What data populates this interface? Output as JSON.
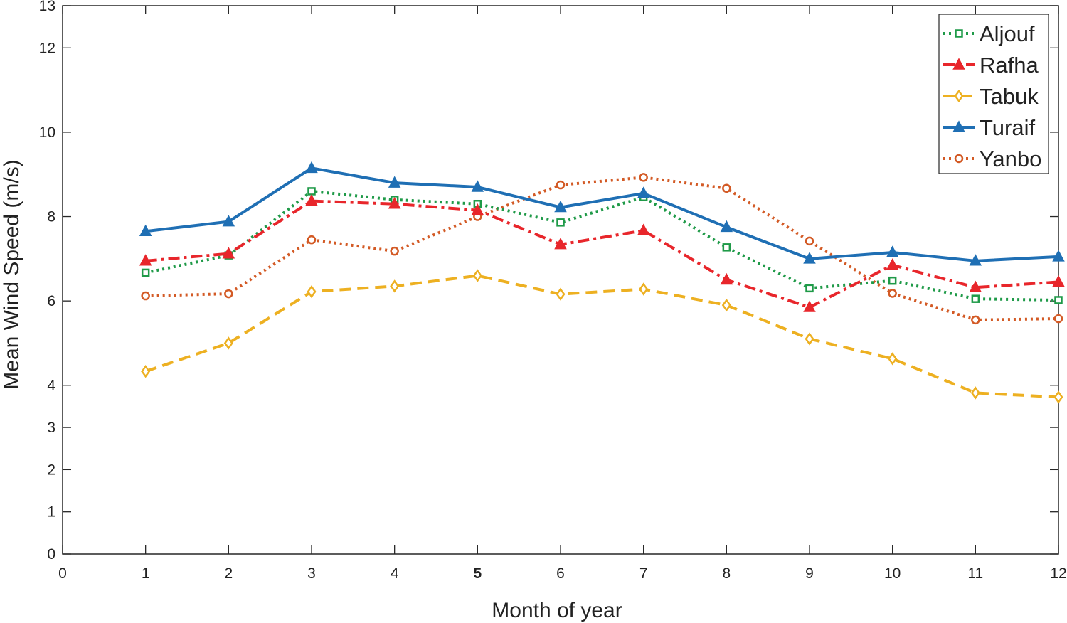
{
  "chart_data": {
    "type": "line",
    "title": "",
    "xlabel": "Month of year",
    "ylabel": "Mean Wind Speed (m/s)",
    "xlim": [
      0,
      12
    ],
    "ylim": [
      0,
      13
    ],
    "x_ticks": [
      {
        "value": 0,
        "label": "0"
      },
      {
        "value": 1,
        "label": "1"
      },
      {
        "value": 2,
        "label": "2"
      },
      {
        "value": 3,
        "label": "3"
      },
      {
        "value": 4,
        "label": "4"
      },
      {
        "value": 5,
        "label": "5",
        "color": "#7aa32a"
      },
      {
        "value": 6,
        "label": "6"
      },
      {
        "value": 7,
        "label": "7"
      },
      {
        "value": 8,
        "label": "8"
      },
      {
        "value": 9,
        "label": "9"
      },
      {
        "value": 10,
        "label": "10"
      },
      {
        "value": 11,
        "label": "11"
      },
      {
        "value": 12,
        "label": "12"
      }
    ],
    "y_ticks": [
      {
        "value": 0,
        "label": "0"
      },
      {
        "value": 1,
        "label": "1"
      },
      {
        "value": 2,
        "label": "2"
      },
      {
        "value": 3,
        "label": "3"
      },
      {
        "value": 4,
        "label": "4"
      },
      {
        "value": 6,
        "label": "6"
      },
      {
        "value": 8,
        "label": "8"
      },
      {
        "value": 10,
        "label": "10"
      },
      {
        "value": 12,
        "label": "12"
      },
      {
        "value": 13,
        "label": "13"
      }
    ],
    "grid": false,
    "legend_position": "top-right",
    "x": [
      1,
      2,
      3,
      4,
      5,
      6,
      7,
      8,
      9,
      10,
      11,
      12
    ],
    "series": [
      {
        "name": "Aljouf",
        "color": "#1f9a48",
        "dash": "dotted",
        "marker": "square",
        "values": [
          6.67,
          7.08,
          8.6,
          8.4,
          8.3,
          7.86,
          8.46,
          7.27,
          6.3,
          6.48,
          6.05,
          6.02
        ]
      },
      {
        "name": "Rafha",
        "color": "#e8262b",
        "dash": "dashdot",
        "marker": "triangle",
        "values": [
          6.95,
          7.12,
          8.37,
          8.3,
          8.15,
          7.34,
          7.67,
          6.5,
          5.85,
          6.85,
          6.32,
          6.45
        ]
      },
      {
        "name": "Tabuk",
        "color": "#edb021",
        "dash": "dashed",
        "marker": "diamond",
        "values": [
          4.33,
          5.0,
          6.22,
          6.35,
          6.6,
          6.16,
          6.28,
          5.9,
          5.1,
          4.63,
          3.82,
          3.72
        ]
      },
      {
        "name": "Turaif",
        "color": "#1f6fb4",
        "dash": "solid",
        "marker": "triangle",
        "values": [
          7.65,
          7.88,
          9.15,
          8.8,
          8.7,
          8.22,
          8.55,
          7.75,
          7.0,
          7.15,
          6.95,
          7.05
        ]
      },
      {
        "name": "Yanbo",
        "color": "#d35a25",
        "dash": "dotted",
        "marker": "circle",
        "values": [
          6.12,
          6.17,
          7.45,
          7.18,
          8.0,
          8.75,
          8.93,
          8.67,
          7.42,
          6.18,
          5.55,
          5.58
        ]
      }
    ]
  }
}
